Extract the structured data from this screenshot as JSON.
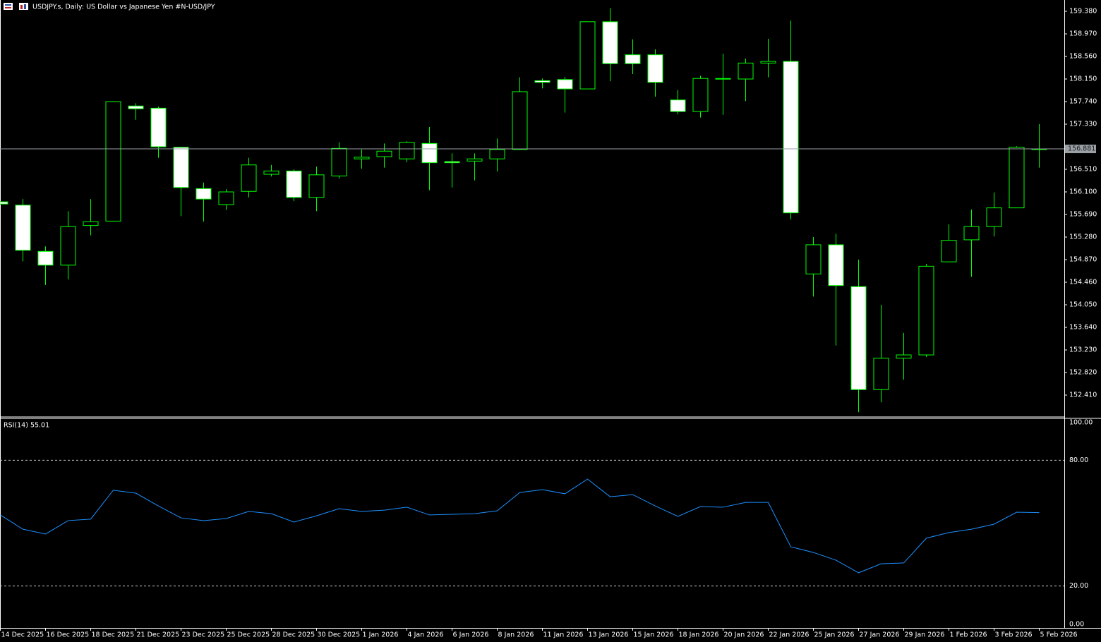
{
  "chart_data": [
    {
      "type": "candlestick",
      "title": "USDJPY.s, Daily:  US Dollar vs  Japanese Yen #N-USD/JPY",
      "categories": [
        "14 Dec 2025",
        null,
        "16 Dec 2025",
        null,
        "18 Dec 2025",
        null,
        "21 Dec 2025",
        null,
        "23 Dec 2025",
        null,
        "25 Dec 2025",
        null,
        "28 Dec 2025",
        null,
        "30 Dec 2025",
        null,
        "1 Jan 2026",
        null,
        "4 Jan 2026",
        null,
        "6 Jan 2026",
        null,
        "8 Jan 2026",
        null,
        "11 Jan 2026",
        null,
        "13 Jan 2026",
        null,
        "15 Jan 2026",
        null,
        "18 Jan 2026",
        null,
        "20 Jan 2026",
        null,
        "22 Jan 2026",
        null,
        "25 Jan 2026",
        null,
        "27 Jan 2026",
        null,
        "29 Jan 2026",
        null,
        "1 Feb 2026",
        null,
        "3 Feb 2026",
        null,
        "5 Feb 2026"
      ],
      "open": [
        155.92,
        155.86,
        155.02,
        154.77,
        155.49,
        155.57,
        157.66,
        157.62,
        156.91,
        156.16,
        155.87,
        156.11,
        156.42,
        156.48,
        156.0,
        156.39,
        156.7,
        156.74,
        156.7,
        156.98,
        156.65,
        156.66,
        156.7,
        156.87,
        158.12,
        158.14,
        157.97,
        159.19,
        158.59,
        158.59,
        157.77,
        157.56,
        158.15,
        158.15,
        158.44,
        158.47,
        154.61,
        155.14,
        154.38,
        152.51,
        153.08,
        153.14,
        154.83,
        155.23,
        155.47,
        155.81,
        156.87
      ],
      "high": [
        155.93,
        155.97,
        155.11,
        155.75,
        155.97,
        157.75,
        157.71,
        157.65,
        156.91,
        156.27,
        156.15,
        156.72,
        156.59,
        156.51,
        156.56,
        157.0,
        156.87,
        156.98,
        157.02,
        157.28,
        156.8,
        156.8,
        157.07,
        158.18,
        158.16,
        158.19,
        159.19,
        159.44,
        158.87,
        158.69,
        157.95,
        158.21,
        158.61,
        158.52,
        158.88,
        159.21,
        155.28,
        155.34,
        154.87,
        154.05,
        153.54,
        154.79,
        155.51,
        155.78,
        156.09,
        156.93,
        157.33
      ],
      "low": [
        155.87,
        154.84,
        154.41,
        154.51,
        155.31,
        155.57,
        157.41,
        156.72,
        155.66,
        155.56,
        155.77,
        156.0,
        156.38,
        155.93,
        155.75,
        156.34,
        156.52,
        156.54,
        156.64,
        156.13,
        156.18,
        156.31,
        156.47,
        156.87,
        157.98,
        157.54,
        157.97,
        158.11,
        158.24,
        157.83,
        157.51,
        157.45,
        157.5,
        157.75,
        158.18,
        155.6,
        154.2,
        153.31,
        152.1,
        152.28,
        152.69,
        153.1,
        154.83,
        154.56,
        155.29,
        155.81,
        156.54
      ],
      "close": [
        155.88,
        155.04,
        154.77,
        155.47,
        155.56,
        157.74,
        157.61,
        156.92,
        156.18,
        155.97,
        156.1,
        156.59,
        156.48,
        156.0,
        156.41,
        156.89,
        156.73,
        156.84,
        157.0,
        156.63,
        156.63,
        156.7,
        156.87,
        157.92,
        158.09,
        157.97,
        159.19,
        158.43,
        158.43,
        158.09,
        157.56,
        158.16,
        158.16,
        158.44,
        158.47,
        155.72,
        155.14,
        154.4,
        152.51,
        153.08,
        153.14,
        154.75,
        155.22,
        155.47,
        155.81,
        156.91,
        156.881
      ],
      "current_price": 156.881,
      "up_color": "#000000",
      "down_color": "#ffffff",
      "outline_color": "#00ff00",
      "ylim": [
        152.026,
        159.585
      ],
      "yticks": [
        {
          "value": 159.38,
          "label": "159.380"
        },
        {
          "value": 158.97,
          "label": "158.970"
        },
        {
          "value": 158.56,
          "label": "158.560"
        },
        {
          "value": 158.15,
          "label": "158.150"
        },
        {
          "value": 157.74,
          "label": "157.740"
        },
        {
          "value": 157.33,
          "label": "157.330"
        },
        {
          "value": 156.51,
          "label": "156.510"
        },
        {
          "value": 156.1,
          "label": "156.100"
        },
        {
          "value": 155.69,
          "label": "155.690"
        },
        {
          "value": 155.28,
          "label": "155.280"
        },
        {
          "value": 154.87,
          "label": "154.870"
        },
        {
          "value": 154.46,
          "label": "154.460"
        },
        {
          "value": 154.05,
          "label": "154.050"
        },
        {
          "value": 153.64,
          "label": "153.640"
        },
        {
          "value": 153.23,
          "label": "153.230"
        },
        {
          "value": 152.82,
          "label": "152.820"
        },
        {
          "value": 152.41,
          "label": "152.410"
        }
      ]
    },
    {
      "type": "line",
      "title": "RSI(14) 55.01",
      "series": [
        {
          "name": "RSI(14)",
          "color": "#1e90ff",
          "values": [
            53.9,
            47.1,
            44.8,
            51.2,
            51.9,
            65.7,
            64.3,
            58.2,
            52.5,
            51.2,
            52.2,
            55.6,
            54.5,
            50.5,
            53.5,
            56.9,
            55.6,
            56.2,
            57.6,
            53.9,
            54.2,
            54.5,
            55.9,
            64.6,
            66.0,
            64.0,
            71.0,
            62.6,
            63.6,
            58.2,
            53.2,
            57.9,
            57.6,
            59.9,
            59.9,
            38.7,
            36.0,
            32.3,
            26.3,
            30.6,
            31.0,
            42.8,
            45.5,
            47.1,
            49.5,
            55.2,
            55.01
          ]
        }
      ],
      "ylim": [
        0,
        100
      ],
      "yticks": [
        {
          "value": 100,
          "label": "100.00"
        },
        {
          "value": 80,
          "label": "80.00"
        },
        {
          "value": 20,
          "label": "20.00"
        },
        {
          "value": 0,
          "label": "0.00"
        }
      ]
    }
  ]
}
